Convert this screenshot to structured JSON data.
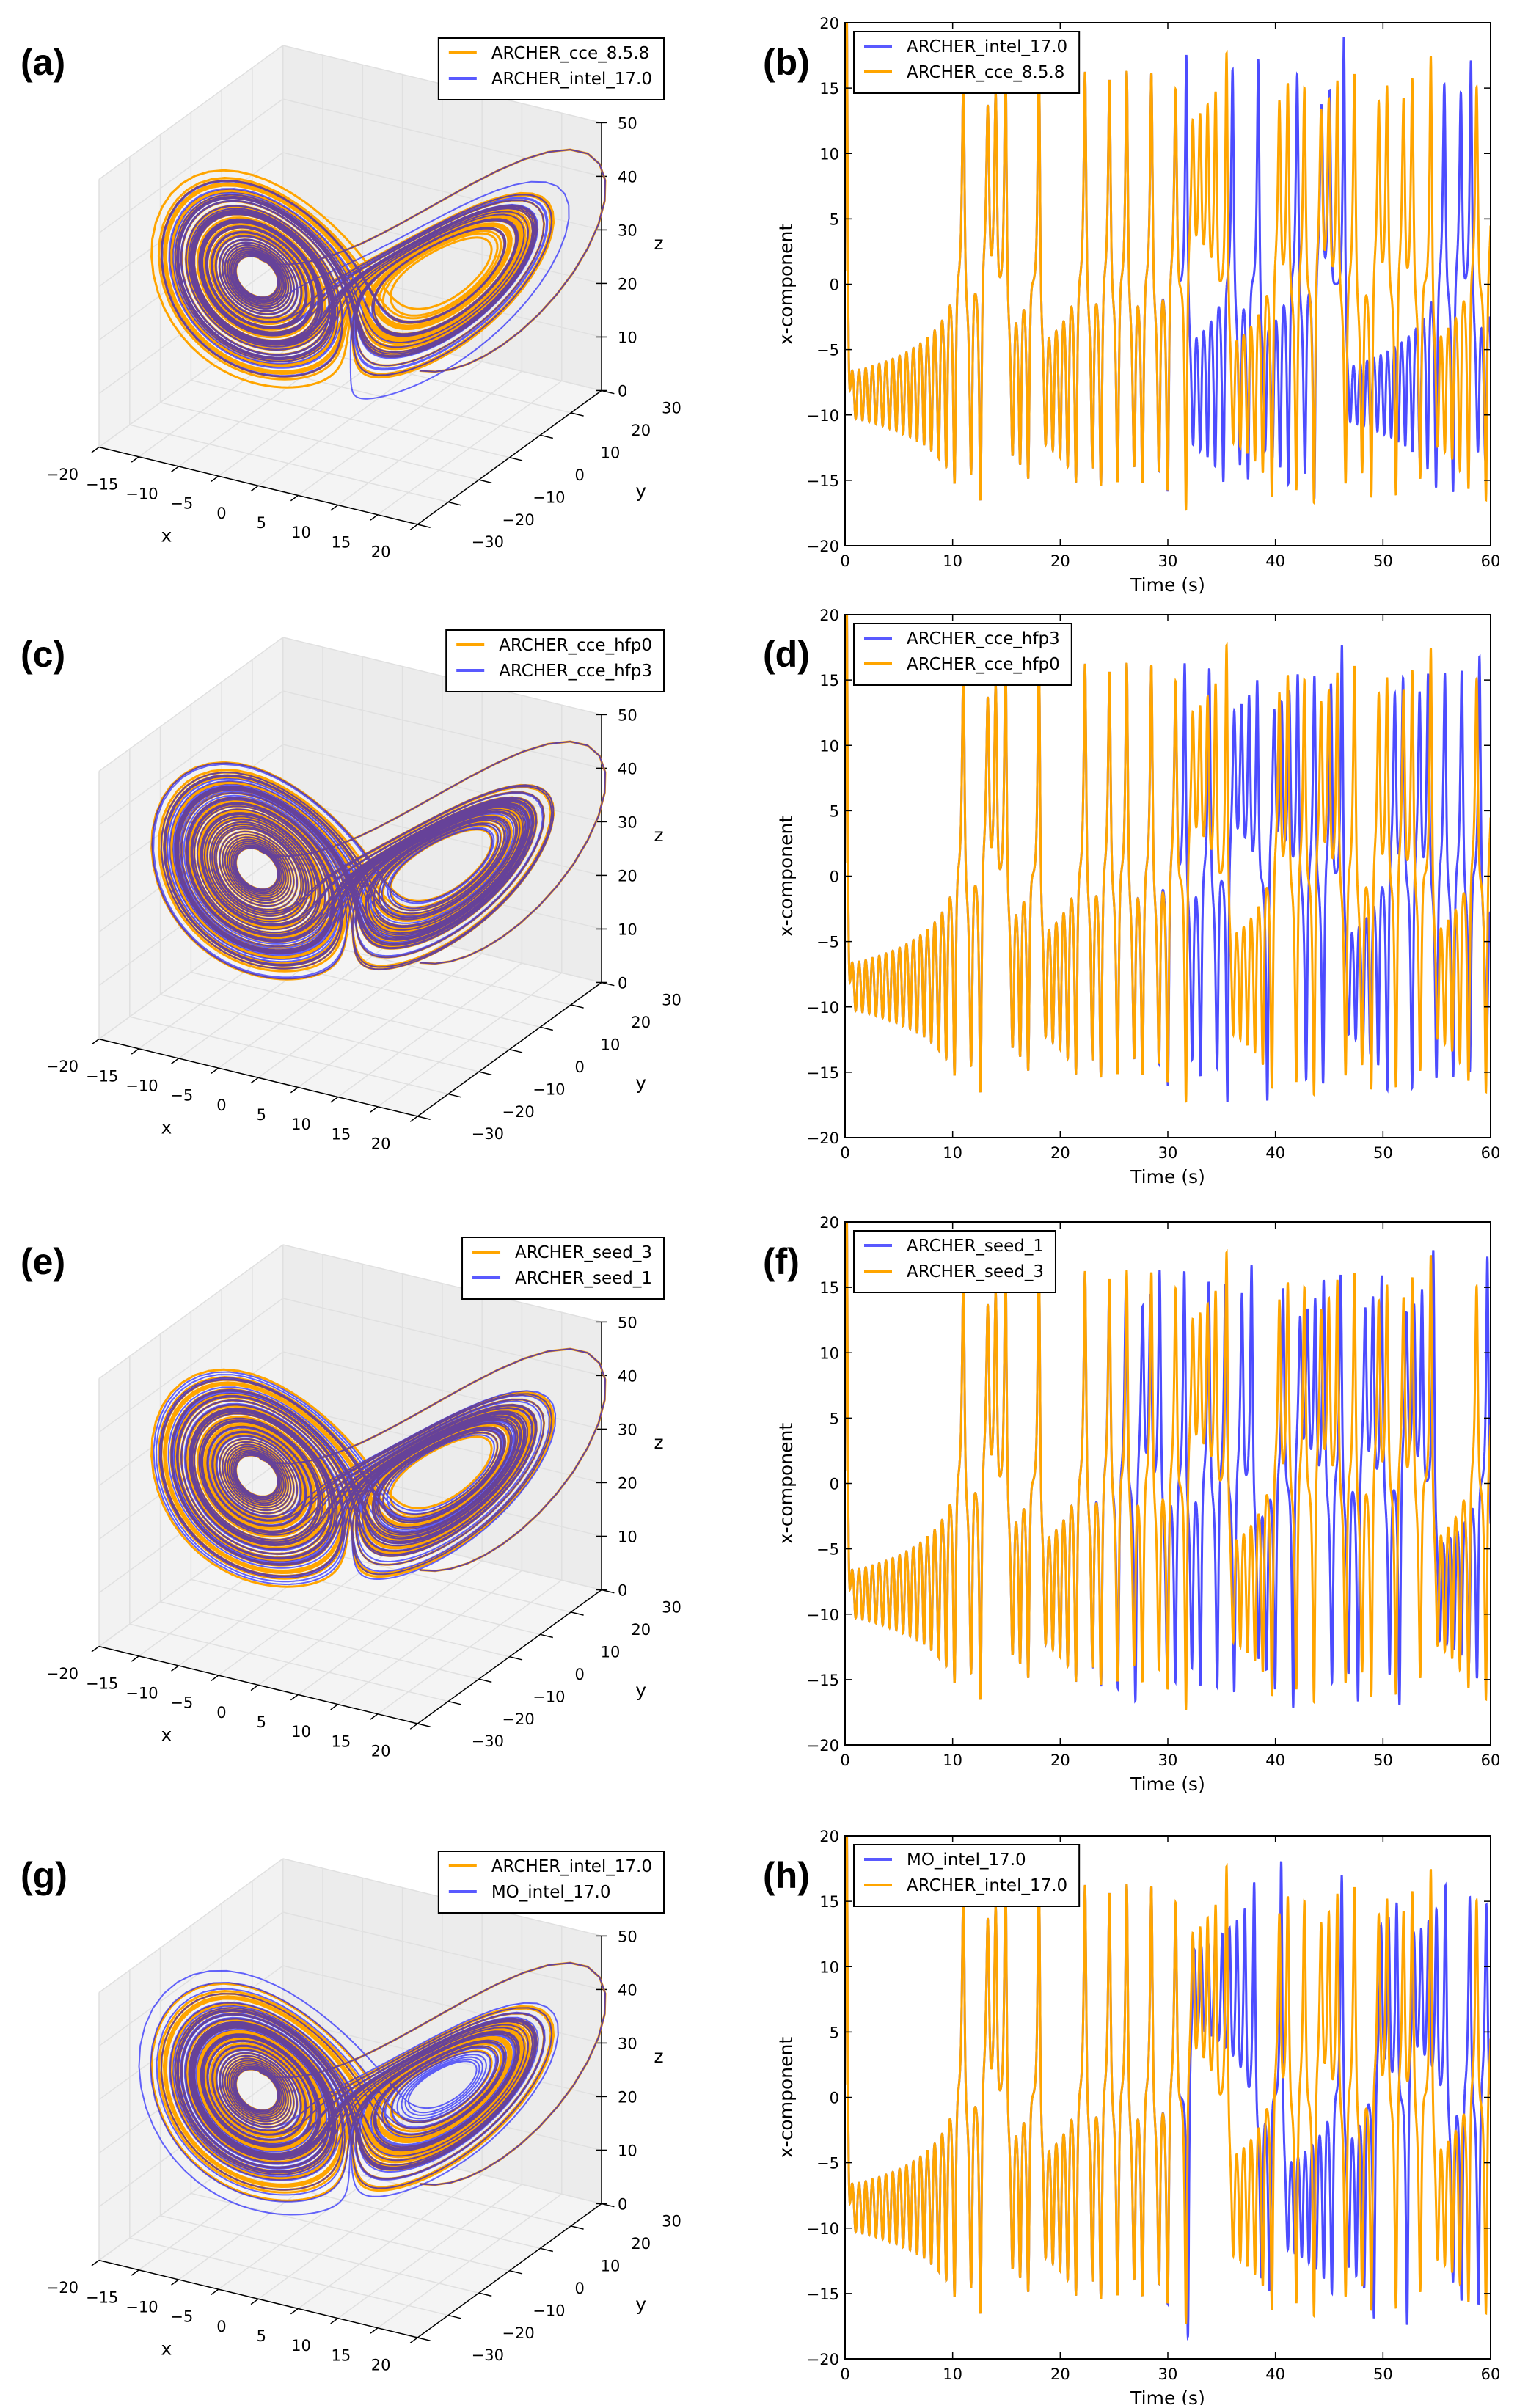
{
  "chart_data": [
    {
      "panel_label": "(a)",
      "type": "line3d",
      "xlabel": "x",
      "ylabel": "y",
      "zlabel": "z",
      "xlim": [
        -20,
        20
      ],
      "ylim": [
        -30,
        30
      ],
      "zlim": [
        0,
        50
      ],
      "xticks": [
        -20,
        -15,
        -10,
        -5,
        0,
        5,
        10,
        15,
        20
      ],
      "xtick_labels": [
        "−20",
        "−15",
        "−10",
        "−5",
        "0",
        "5",
        "10",
        "15",
        "20"
      ],
      "yticks": [
        -30,
        -20,
        -10,
        0,
        10,
        20,
        30
      ],
      "ytick_labels": [
        "−30",
        "−20",
        "−10",
        "0",
        "10",
        "20",
        "30"
      ],
      "zticks": [
        0,
        10,
        20,
        30,
        40,
        50
      ],
      "ztick_labels": [
        "0",
        "10",
        "20",
        "30",
        "40",
        "50"
      ],
      "legend_position": "upper-right",
      "series": [
        {
          "name": "ARCHER_cce_8.5.8",
          "color": "#FFA500"
        },
        {
          "name": "ARCHER_intel_17.0",
          "color": "#0000FF"
        }
      ]
    },
    {
      "panel_label": "(b)",
      "type": "line",
      "xlabel": "Time (s)",
      "ylabel": "x-component",
      "xlim": [
        0,
        60
      ],
      "ylim": [
        -20,
        20
      ],
      "xticks": [
        0,
        10,
        20,
        30,
        40,
        50,
        60
      ],
      "xtick_labels": [
        "0",
        "10",
        "20",
        "30",
        "40",
        "50",
        "60"
      ],
      "yticks": [
        -20,
        -15,
        -10,
        -5,
        0,
        5,
        10,
        15,
        20
      ],
      "ytick_labels": [
        "−20",
        "−15",
        "−10",
        "−5",
        "0",
        "5",
        "10",
        "15",
        "20"
      ],
      "legend_position": "upper-left",
      "series": [
        {
          "name": "ARCHER_intel_17.0",
          "color": "#0000FF"
        },
        {
          "name": "ARCHER_cce_8.5.8",
          "color": "#FFA500"
        }
      ]
    },
    {
      "panel_label": "(c)",
      "type": "line3d",
      "xlabel": "x",
      "ylabel": "y",
      "zlabel": "z",
      "xlim": [
        -20,
        20
      ],
      "ylim": [
        -30,
        30
      ],
      "zlim": [
        0,
        50
      ],
      "xticks": [
        -20,
        -15,
        -10,
        -5,
        0,
        5,
        10,
        15,
        20
      ],
      "xtick_labels": [
        "−20",
        "−15",
        "−10",
        "−5",
        "0",
        "5",
        "10",
        "15",
        "20"
      ],
      "yticks": [
        -30,
        -20,
        -10,
        0,
        10,
        20,
        30
      ],
      "ytick_labels": [
        "−30",
        "−20",
        "−10",
        "0",
        "10",
        "20",
        "30"
      ],
      "zticks": [
        0,
        10,
        20,
        30,
        40,
        50
      ],
      "ztick_labels": [
        "0",
        "10",
        "20",
        "30",
        "40",
        "50"
      ],
      "legend_position": "upper-right",
      "series": [
        {
          "name": "ARCHER_cce_hfp0",
          "color": "#FFA500"
        },
        {
          "name": "ARCHER_cce_hfp3",
          "color": "#0000FF"
        }
      ]
    },
    {
      "panel_label": "(d)",
      "type": "line",
      "xlabel": "Time (s)",
      "ylabel": "x-component",
      "xlim": [
        0,
        60
      ],
      "ylim": [
        -20,
        20
      ],
      "xticks": [
        0,
        10,
        20,
        30,
        40,
        50,
        60
      ],
      "xtick_labels": [
        "0",
        "10",
        "20",
        "30",
        "40",
        "50",
        "60"
      ],
      "yticks": [
        -20,
        -15,
        -10,
        -5,
        0,
        5,
        10,
        15,
        20
      ],
      "ytick_labels": [
        "−20",
        "−15",
        "−10",
        "−5",
        "0",
        "5",
        "10",
        "15",
        "20"
      ],
      "legend_position": "upper-left",
      "series": [
        {
          "name": "ARCHER_cce_hfp3",
          "color": "#0000FF"
        },
        {
          "name": "ARCHER_cce_hfp0",
          "color": "#FFA500"
        }
      ]
    },
    {
      "panel_label": "(e)",
      "type": "line3d",
      "xlabel": "x",
      "ylabel": "y",
      "zlabel": "z",
      "xlim": [
        -20,
        20
      ],
      "ylim": [
        -30,
        30
      ],
      "zlim": [
        0,
        50
      ],
      "xticks": [
        -20,
        -15,
        -10,
        -5,
        0,
        5,
        10,
        15,
        20
      ],
      "xtick_labels": [
        "−20",
        "−15",
        "−10",
        "−5",
        "0",
        "5",
        "10",
        "15",
        "20"
      ],
      "yticks": [
        -30,
        -20,
        -10,
        0,
        10,
        20,
        30
      ],
      "ytick_labels": [
        "−30",
        "−20",
        "−10",
        "0",
        "10",
        "20",
        "30"
      ],
      "zticks": [
        0,
        10,
        20,
        30,
        40,
        50
      ],
      "ztick_labels": [
        "0",
        "10",
        "20",
        "30",
        "40",
        "50"
      ],
      "legend_position": "upper-right",
      "series": [
        {
          "name": "ARCHER_seed_3",
          "color": "#FFA500"
        },
        {
          "name": "ARCHER_seed_1",
          "color": "#0000FF"
        }
      ]
    },
    {
      "panel_label": "(f)",
      "type": "line",
      "xlabel": "Time (s)",
      "ylabel": "x-component",
      "xlim": [
        0,
        60
      ],
      "ylim": [
        -20,
        20
      ],
      "xticks": [
        0,
        10,
        20,
        30,
        40,
        50,
        60
      ],
      "xtick_labels": [
        "0",
        "10",
        "20",
        "30",
        "40",
        "50",
        "60"
      ],
      "yticks": [
        -20,
        -15,
        -10,
        -5,
        0,
        5,
        10,
        15,
        20
      ],
      "ytick_labels": [
        "−20",
        "−15",
        "−10",
        "−5",
        "0",
        "5",
        "10",
        "15",
        "20"
      ],
      "legend_position": "upper-left",
      "series": [
        {
          "name": "ARCHER_seed_1",
          "color": "#0000FF"
        },
        {
          "name": "ARCHER_seed_3",
          "color": "#FFA500"
        }
      ]
    },
    {
      "panel_label": "(g)",
      "type": "line3d",
      "xlabel": "x",
      "ylabel": "y",
      "zlabel": "z",
      "xlim": [
        -20,
        20
      ],
      "ylim": [
        -30,
        30
      ],
      "zlim": [
        0,
        50
      ],
      "xticks": [
        -20,
        -15,
        -10,
        -5,
        0,
        5,
        10,
        15,
        20
      ],
      "xtick_labels": [
        "−20",
        "−15",
        "−10",
        "−5",
        "0",
        "5",
        "10",
        "15",
        "20"
      ],
      "yticks": [
        -30,
        -20,
        -10,
        0,
        10,
        20,
        30
      ],
      "ytick_labels": [
        "−30",
        "−20",
        "−10",
        "0",
        "10",
        "20",
        "30"
      ],
      "zticks": [
        0,
        10,
        20,
        30,
        40,
        50
      ],
      "ztick_labels": [
        "0",
        "10",
        "20",
        "30",
        "40",
        "50"
      ],
      "legend_position": "upper-right",
      "series": [
        {
          "name": "ARCHER_intel_17.0",
          "color": "#FFA500"
        },
        {
          "name": "MO_intel_17.0",
          "color": "#0000FF"
        }
      ]
    },
    {
      "panel_label": "(h)",
      "type": "line",
      "xlabel": "Time (s)",
      "ylabel": "x-component",
      "xlim": [
        0,
        60
      ],
      "ylim": [
        -20,
        20
      ],
      "xticks": [
        0,
        10,
        20,
        30,
        40,
        50,
        60
      ],
      "xtick_labels": [
        "0",
        "10",
        "20",
        "30",
        "40",
        "50",
        "60"
      ],
      "yticks": [
        -20,
        -15,
        -10,
        -5,
        0,
        5,
        10,
        15,
        20
      ],
      "ytick_labels": [
        "−20",
        "−15",
        "−10",
        "−5",
        "0",
        "5",
        "10",
        "15",
        "20"
      ],
      "legend_position": "upper-left",
      "series": [
        {
          "name": "MO_intel_17.0",
          "color": "#0000FF"
        },
        {
          "name": "ARCHER_intel_17.0",
          "color": "#FFA500"
        }
      ]
    }
  ]
}
